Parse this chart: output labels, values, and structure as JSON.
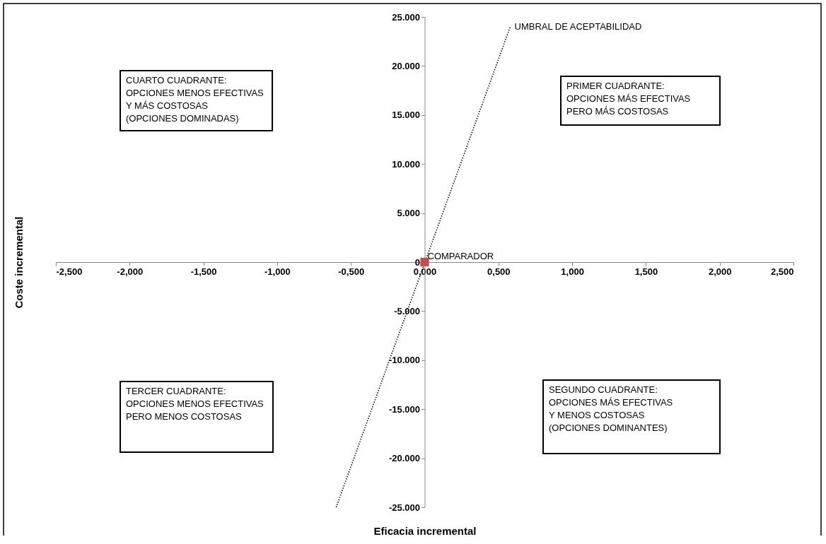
{
  "chart_data": {
    "type": "scatter",
    "xlabel": "Eficacia incremental",
    "ylabel": "Coste incremental",
    "xlim": [
      -2.5,
      2.5
    ],
    "ylim": [
      -25000,
      25000
    ],
    "xticks": [
      {
        "value": -2.5,
        "label": "-2,500"
      },
      {
        "value": -2,
        "label": "-2,000"
      },
      {
        "value": -1.5,
        "label": "-1,500"
      },
      {
        "value": -1,
        "label": "-1,000"
      },
      {
        "value": -0.5,
        "label": "-0,500"
      },
      {
        "value": 0,
        "label": "0,000"
      },
      {
        "value": 0.5,
        "label": "0,500"
      },
      {
        "value": 1,
        "label": "1,000"
      },
      {
        "value": 1.5,
        "label": "1,500"
      },
      {
        "value": 2,
        "label": "2,000"
      },
      {
        "value": 2.5,
        "label": "2,500"
      }
    ],
    "yticks": [
      {
        "value": -25000,
        "label": "-25.000"
      },
      {
        "value": -20000,
        "label": "-20.000"
      },
      {
        "value": -15000,
        "label": "-15.000"
      },
      {
        "value": -10000,
        "label": "-10.000"
      },
      {
        "value": -5000,
        "label": "-5.000"
      },
      0,
      {
        "value": 5000,
        "label": "5.000"
      },
      {
        "value": 10000,
        "label": "10.000"
      },
      {
        "value": 15000,
        "label": "15.000"
      },
      {
        "value": 20000,
        "label": "20.000"
      },
      {
        "value": 25000,
        "label": "25.000"
      }
    ],
    "grid": false,
    "series": [
      {
        "name": "UMBRAL DE ACEPTABILIDAD",
        "type": "line",
        "line_style": "dotted",
        "color": "#000000",
        "x": [
          -0.6,
          0.58
        ],
        "values": [
          -25000,
          24000
        ]
      },
      {
        "name": "COMPARADOR",
        "type": "scatter",
        "marker": "square",
        "color": "#c0504d",
        "x": [
          0
        ],
        "values": [
          0
        ]
      }
    ],
    "annotations": [
      "CUARTO CUADRANTE:\nOPCIONES MENOS EFECTIVAS\nY MÁS COSTOSAS\n(OPCIONES DOMINADAS)",
      "PRIMER CUADRANTE:\nOPCIONES MÁS EFECTIVAS\nPERO MÁS COSTOSAS",
      "TERCER CUADRANTE:\nOPCIONES MENOS EFECTIVAS\nPERO MENOS COSTOSAS",
      "SEGUNDO CUADRANTE:\nOPCIONES MÁS EFECTIVAS\nY MENOS COSTOSAS\n(OPCIONES DOMINANTES)"
    ]
  }
}
